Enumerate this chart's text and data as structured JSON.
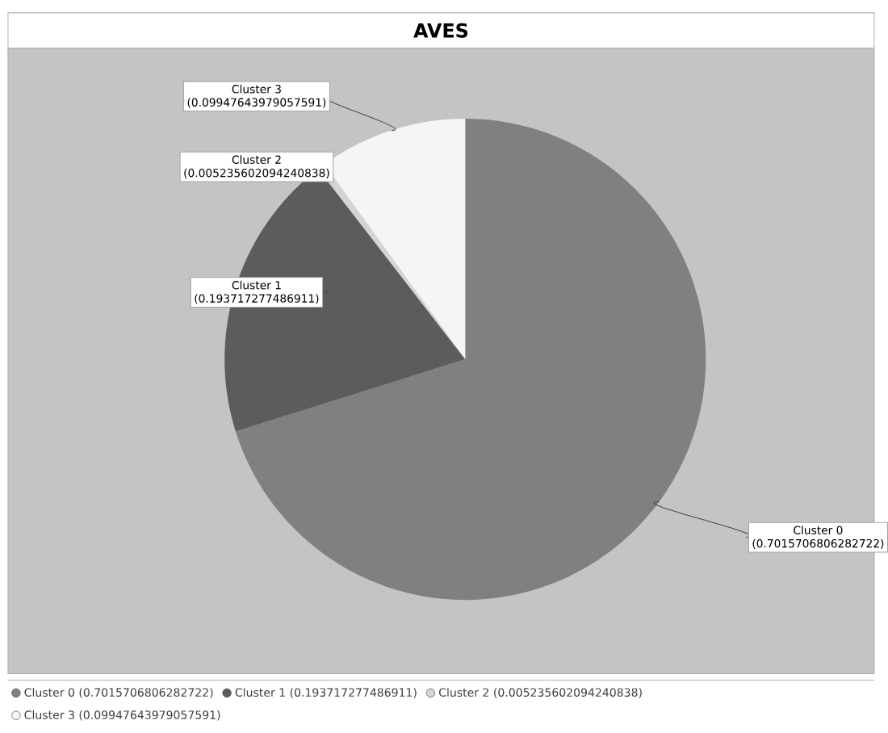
{
  "chart_data": {
    "type": "pie",
    "title": "AVES",
    "categories": [
      "Cluster 0",
      "Cluster 1",
      "Cluster 2",
      "Cluster 3"
    ],
    "values": [
      0.7015706806282722,
      0.193717277486911,
      0.005235602094240838,
      0.09947643979057591
    ],
    "value_labels": [
      "(0.7015706806282722)",
      "(0.193717277486911)",
      "(0.005235602094240838)",
      "(0.09947643979057591)"
    ],
    "colors": [
      "#808080",
      "#5c5c5c",
      "#d4d4d4",
      "#f5f5f5"
    ],
    "legend": "bottom"
  }
}
